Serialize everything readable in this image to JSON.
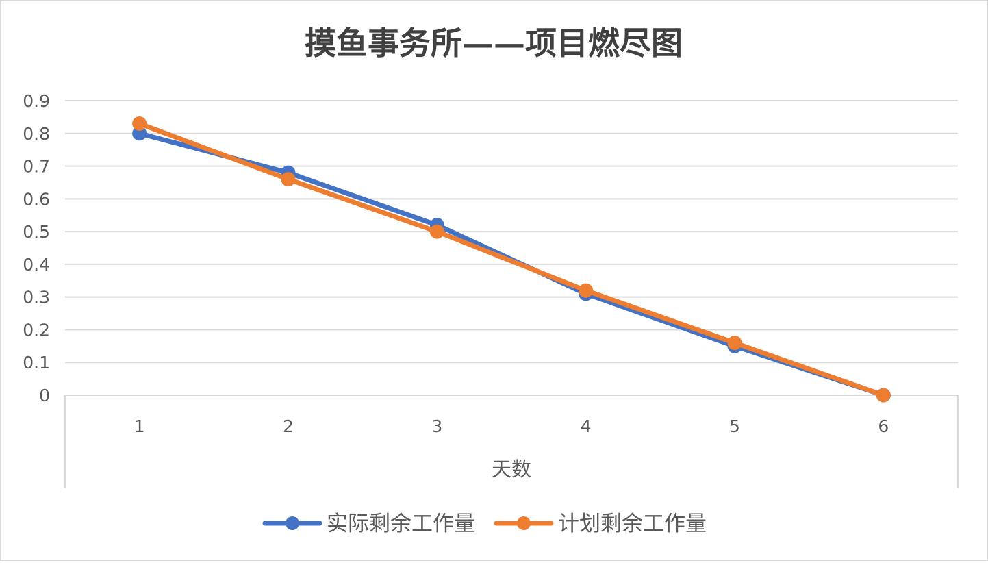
{
  "chart_data": {
    "type": "line",
    "title": "摸鱼事务所——项目燃尽图",
    "xlabel": "天数",
    "ylabel": "",
    "categories": [
      "1",
      "2",
      "3",
      "4",
      "5",
      "6"
    ],
    "ylim": [
      0,
      0.9
    ],
    "y_ticks": [
      "0",
      "0.1",
      "0.2",
      "0.3",
      "0.4",
      "0.5",
      "0.6",
      "0.7",
      "0.8",
      "0.9"
    ],
    "grid": true,
    "legend_position": "bottom",
    "series": [
      {
        "name": "实际剩余工作量",
        "color": "#4472c4",
        "values": [
          0.8,
          0.68,
          0.52,
          0.31,
          0.15,
          0.0
        ]
      },
      {
        "name": "计划剩余工作量",
        "color": "#ed7d31",
        "values": [
          0.83,
          0.66,
          0.5,
          0.32,
          0.16,
          0.0
        ]
      }
    ]
  }
}
